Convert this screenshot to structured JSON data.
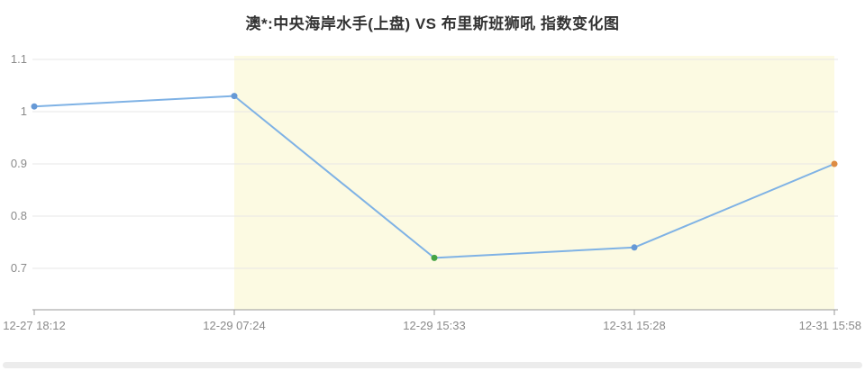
{
  "chart_data": {
    "type": "line",
    "title": "澳*:中央海岸水手(上盘) VS 布里斯班狮吼 指数变化图",
    "categories": [
      "12-27 18:12",
      "12-29 07:24",
      "12-29 15:33",
      "12-31 15:28",
      "12-31 15:58"
    ],
    "values": [
      1.01,
      1.03,
      0.72,
      0.74,
      0.9
    ],
    "series_name": "指数",
    "point_colors": [
      "#6699d6",
      "#6699d6",
      "#44a344",
      "#6699d6",
      "#dd8c43"
    ],
    "line_color": "#7fb2e5",
    "yticks": [
      0.7,
      0.8,
      0.9,
      1.0,
      1.1
    ],
    "ytick_labels": [
      "0.7",
      "0.8",
      "0.9",
      "1",
      "1.1"
    ],
    "ylim": [
      0.62,
      1.17
    ],
    "xlabel": "",
    "ylabel": "",
    "grid": true,
    "legend": false,
    "plot_band": {
      "from_category_index": 1,
      "to_category_index": 4,
      "color": "#fcfae2"
    },
    "colors": {
      "grid": "#e7e7e7",
      "axis_line": "#9a9a9a",
      "axis_label": "#8a8a8a",
      "title": "#333333",
      "background": "#ffffff"
    }
  }
}
